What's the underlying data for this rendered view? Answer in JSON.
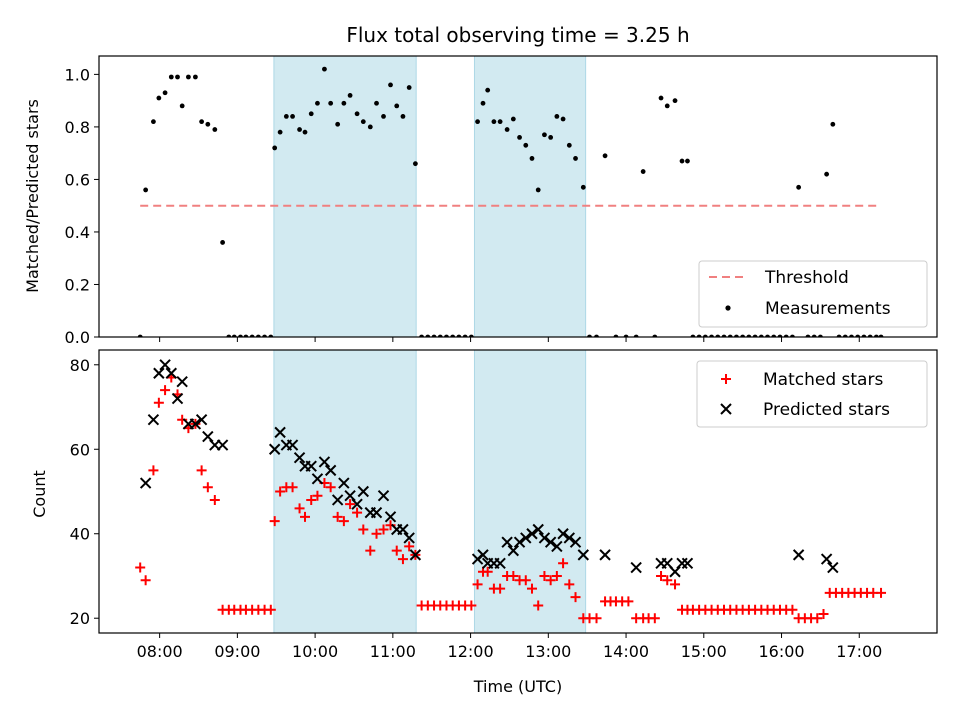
{
  "chart_data": [
    {
      "type": "scatter",
      "title": "Flux total observing time = 3.25 h",
      "ylabel": "Matched/Predicted stars",
      "xlabel": "",
      "xlim": [
        7.22,
        18.0
      ],
      "ylim": [
        0,
        1.07
      ],
      "y_ticks": [
        "0.0",
        "0.2",
        "0.4",
        "0.6",
        "0.8",
        "1.0"
      ],
      "y_tick_values": [
        0,
        0.2,
        0.4,
        0.6,
        0.8,
        1.0
      ],
      "shaded_intervals": [
        [
          9.47,
          11.3
        ],
        [
          12.05,
          13.48
        ]
      ],
      "shade_color": "#add8e6",
      "threshold": {
        "name": "Threshold",
        "value": 0.5,
        "x_range": [
          7.75,
          17.25
        ],
        "color": "#f08080"
      },
      "series": [
        {
          "name": "Measurements",
          "color": "#000000",
          "x": [
            7.75,
            7.82,
            7.92,
            7.99,
            8.07,
            8.15,
            8.23,
            8.29,
            8.37,
            8.46,
            8.54,
            8.62,
            8.71,
            8.81,
            8.89,
            8.96,
            9.04,
            9.11,
            9.19,
            9.27,
            9.35,
            9.43,
            9.48,
            9.55,
            9.63,
            9.71,
            9.8,
            9.87,
            9.95,
            10.03,
            10.12,
            10.2,
            10.29,
            10.37,
            10.45,
            10.54,
            10.62,
            10.71,
            10.79,
            10.88,
            10.97,
            11.05,
            11.13,
            11.21,
            11.29,
            11.37,
            11.45,
            11.53,
            11.61,
            11.69,
            11.77,
            11.85,
            11.93,
            12.01,
            12.09,
            12.16,
            12.22,
            12.3,
            12.38,
            12.47,
            12.55,
            12.63,
            12.71,
            12.79,
            12.87,
            12.95,
            13.03,
            13.11,
            13.19,
            13.27,
            13.35,
            13.45,
            13.53,
            13.62,
            13.73,
            13.87,
            14.0,
            14.13,
            14.22,
            14.37,
            14.45,
            14.53,
            14.63,
            14.72,
            14.79,
            14.86,
            14.94,
            15.02,
            15.1,
            15.18,
            15.26,
            15.34,
            15.42,
            15.5,
            15.58,
            15.66,
            15.74,
            15.82,
            15.9,
            15.98,
            16.06,
            16.14,
            16.22,
            16.34,
            16.42,
            16.5,
            16.58,
            16.66,
            16.74,
            16.82,
            16.9,
            16.98,
            17.06,
            17.14,
            17.22,
            17.28
          ],
          "y": [
            0.0,
            0.56,
            0.82,
            0.91,
            0.93,
            0.99,
            0.99,
            0.88,
            0.99,
            0.99,
            0.82,
            0.81,
            0.79,
            0.36,
            0.0,
            0.0,
            0.0,
            0.0,
            0.0,
            0.0,
            0.0,
            0.0,
            0.72,
            0.78,
            0.84,
            0.84,
            0.79,
            0.78,
            0.85,
            0.89,
            1.02,
            0.89,
            0.81,
            0.89,
            0.92,
            0.85,
            0.82,
            0.8,
            0.89,
            0.84,
            0.96,
            0.88,
            0.84,
            0.95,
            0.66,
            0.0,
            0.0,
            0.0,
            0.0,
            0.0,
            0.0,
            0.0,
            0.0,
            0.0,
            0.82,
            0.89,
            0.94,
            0.82,
            0.82,
            0.79,
            0.83,
            0.76,
            0.73,
            0.68,
            0.56,
            0.77,
            0.76,
            0.84,
            0.83,
            0.73,
            0.68,
            0.57,
            0.0,
            0.0,
            0.69,
            0.0,
            0.0,
            0.0,
            0.63,
            0.0,
            0.91,
            0.88,
            0.9,
            0.67,
            0.67,
            0.0,
            0.0,
            0.0,
            0.0,
            0.0,
            0.0,
            0.0,
            0.0,
            0.0,
            0.0,
            0.0,
            0.0,
            0.0,
            0.0,
            0.0,
            0.0,
            0.0,
            0.57,
            0.0,
            0.0,
            0.0,
            0.62,
            0.81,
            0.0,
            0.0,
            0.0,
            0.0,
            0.0,
            0.0,
            0.0,
            0.0
          ]
        }
      ],
      "legend": {
        "placement": "lower right",
        "entries": [
          "Threshold",
          "Measurements"
        ]
      }
    },
    {
      "type": "scatter",
      "title": "",
      "xlabel": "Time (UTC)",
      "ylabel": "Count",
      "xlim": [
        7.22,
        18.0
      ],
      "ylim": [
        16.5,
        83.5
      ],
      "y_ticks": [
        "20",
        "40",
        "60",
        "80"
      ],
      "y_tick_values": [
        20,
        40,
        60,
        80
      ],
      "x_ticks": [
        "08:00",
        "09:00",
        "10:00",
        "11:00",
        "12:00",
        "13:00",
        "14:00",
        "15:00",
        "16:00",
        "17:00"
      ],
      "x_tick_values": [
        8,
        9,
        10,
        11,
        12,
        13,
        14,
        15,
        16,
        17
      ],
      "shaded_intervals": [
        [
          9.47,
          11.3
        ],
        [
          12.05,
          13.48
        ]
      ],
      "shade_color": "#add8e6",
      "series": [
        {
          "name": "Matched stars",
          "marker": "plus",
          "color": "#ff0000",
          "x": [
            7.75,
            7.82,
            7.92,
            7.99,
            8.07,
            8.15,
            8.23,
            8.29,
            8.37,
            8.46,
            8.54,
            8.62,
            8.71,
            8.81,
            8.89,
            8.96,
            9.04,
            9.11,
            9.19,
            9.27,
            9.35,
            9.43,
            9.48,
            9.55,
            9.63,
            9.71,
            9.8,
            9.87,
            9.95,
            10.03,
            10.12,
            10.2,
            10.29,
            10.37,
            10.45,
            10.54,
            10.62,
            10.71,
            10.79,
            10.88,
            10.97,
            11.05,
            11.13,
            11.21,
            11.29,
            11.37,
            11.45,
            11.53,
            11.61,
            11.69,
            11.77,
            11.85,
            11.93,
            12.01,
            12.09,
            12.16,
            12.22,
            12.3,
            12.38,
            12.47,
            12.55,
            12.63,
            12.71,
            12.79,
            12.87,
            12.95,
            13.03,
            13.11,
            13.19,
            13.27,
            13.35,
            13.45,
            13.53,
            13.62,
            13.73,
            13.8,
            13.87,
            13.95,
            14.03,
            14.13,
            14.22,
            14.29,
            14.37,
            14.45,
            14.53,
            14.63,
            14.72,
            14.79,
            14.86,
            14.94,
            15.02,
            15.1,
            15.18,
            15.26,
            15.34,
            15.42,
            15.5,
            15.58,
            15.66,
            15.74,
            15.82,
            15.9,
            15.98,
            16.06,
            16.14,
            16.22,
            16.3,
            16.38,
            16.46,
            16.54,
            16.62,
            16.7,
            16.78,
            16.86,
            16.94,
            17.02,
            17.1,
            17.18,
            17.28
          ],
          "y": [
            32,
            29,
            55,
            71,
            74,
            77,
            73,
            67,
            65,
            66,
            55,
            51,
            48,
            22,
            22,
            22,
            22,
            22,
            22,
            22,
            22,
            22,
            43,
            50,
            51,
            51,
            46,
            44,
            48,
            49,
            52,
            51,
            44,
            43,
            47,
            45,
            41,
            36,
            40,
            41,
            42,
            36,
            34,
            37,
            35,
            23,
            23,
            23,
            23,
            23,
            23,
            23,
            23,
            23,
            28,
            31,
            31,
            27,
            27,
            30,
            30,
            29,
            29,
            27,
            23,
            30,
            29,
            30,
            33,
            28,
            25,
            20,
            20,
            20,
            24,
            24,
            24,
            24,
            24,
            20,
            20,
            20,
            20,
            30,
            29,
            28,
            22,
            22,
            22,
            22,
            22,
            22,
            22,
            22,
            22,
            22,
            22,
            22,
            22,
            22,
            22,
            22,
            22,
            22,
            22,
            20,
            20,
            20,
            20,
            21,
            26,
            26,
            26,
            26,
            26,
            26,
            26,
            26,
            26
          ]
        },
        {
          "name": "Predicted stars",
          "marker": "x",
          "color": "#000000",
          "x": [
            7.82,
            7.92,
            7.99,
            8.07,
            8.15,
            8.23,
            8.29,
            8.37,
            8.46,
            8.54,
            8.62,
            8.71,
            8.81,
            9.48,
            9.55,
            9.63,
            9.71,
            9.8,
            9.87,
            9.95,
            10.03,
            10.12,
            10.2,
            10.29,
            10.37,
            10.45,
            10.54,
            10.62,
            10.71,
            10.79,
            10.88,
            10.97,
            11.05,
            11.13,
            11.21,
            11.29,
            12.09,
            12.16,
            12.22,
            12.3,
            12.38,
            12.47,
            12.55,
            12.63,
            12.71,
            12.79,
            12.87,
            12.95,
            13.03,
            13.11,
            13.19,
            13.27,
            13.35,
            13.45,
            13.73,
            14.13,
            14.45,
            14.53,
            14.63,
            14.72,
            14.79,
            16.22,
            16.58,
            16.66
          ],
          "y": [
            52,
            67,
            78,
            80,
            78,
            72,
            76,
            66,
            66,
            67,
            63,
            61,
            61,
            60,
            64,
            61,
            61,
            58,
            56,
            56,
            53,
            57,
            55,
            48,
            52,
            49,
            47,
            50,
            45,
            45,
            49,
            44,
            41,
            41,
            39,
            35,
            34,
            35,
            33,
            33,
            33,
            38,
            36,
            38,
            39,
            40,
            41,
            39,
            38,
            37,
            40,
            39,
            38,
            35,
            35,
            32,
            33,
            33,
            31,
            33,
            33,
            35,
            34,
            32
          ]
        }
      ],
      "legend": {
        "placement": "upper right",
        "entries": [
          "Matched stars",
          "Predicted stars"
        ]
      }
    }
  ]
}
